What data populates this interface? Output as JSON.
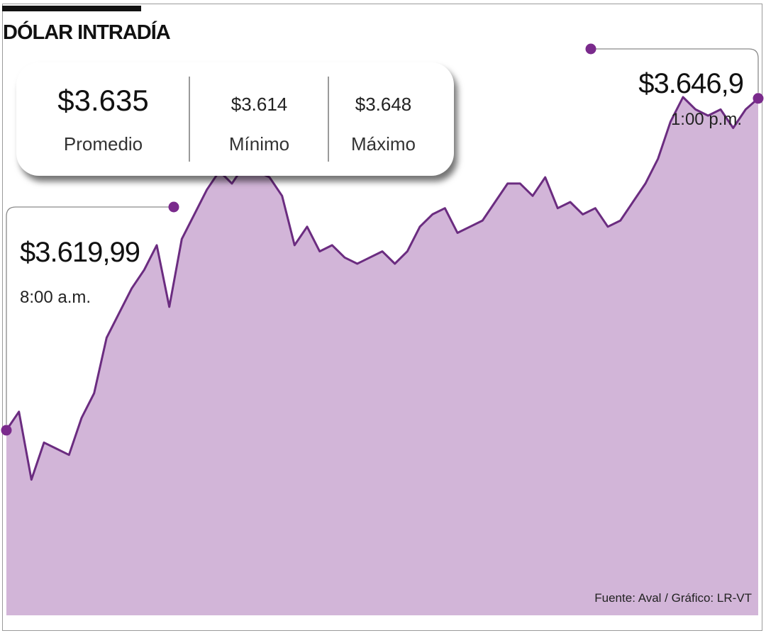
{
  "title": "DÓLAR INTRADÍA",
  "stats": {
    "average": {
      "value": "$3.635",
      "label": "Promedio"
    },
    "minimum": {
      "value": "$3.614",
      "label": "Mínimo"
    },
    "maximum": {
      "value": "$3.648",
      "label": "Máximo"
    }
  },
  "annotations": {
    "open": {
      "value": "$3.619,99",
      "time": "8:00 a.m."
    },
    "close": {
      "value": "$3.646,9",
      "time": "1:00 p.m."
    }
  },
  "source": "Fuente: Aval / Gráfico: LR-VT",
  "colors": {
    "line": "#6b2c80",
    "fill": "#d2b5d8",
    "marker": "#7a2a8c"
  },
  "chart_data": {
    "type": "area",
    "y_unit": "COP per USD",
    "xlim": [
      "8:00 a.m.",
      "1:00 p.m."
    ],
    "ylim": [
      3605,
      3652
    ],
    "x": [
      "8:00",
      "8:05",
      "8:10",
      "8:15",
      "8:20",
      "8:25",
      "8:30",
      "8:35",
      "8:40",
      "8:45",
      "8:50",
      "8:55",
      "9:00",
      "9:05",
      "9:10",
      "9:15",
      "9:20",
      "9:25",
      "9:30",
      "9:35",
      "9:40",
      "9:45",
      "9:50",
      "9:55",
      "10:00",
      "10:05",
      "10:10",
      "10:15",
      "10:20",
      "10:25",
      "10:30",
      "10:35",
      "10:40",
      "10:45",
      "10:50",
      "10:55",
      "11:00",
      "11:05",
      "11:10",
      "11:15",
      "11:20",
      "11:25",
      "11:30",
      "11:35",
      "11:40",
      "11:45",
      "11:50",
      "11:55",
      "12:00",
      "12:05",
      "12:10",
      "12:15",
      "12:20",
      "12:25",
      "12:30",
      "12:35",
      "12:40",
      "12:45",
      "12:50",
      "12:55",
      "13:00"
    ],
    "y": [
      3620.0,
      3621.5,
      3616.0,
      3619.0,
      3618.5,
      3618.0,
      3621.0,
      3623.0,
      3627.5,
      3629.5,
      3631.5,
      3633.0,
      3635.0,
      3630.0,
      3635.5,
      3637.5,
      3639.5,
      3641.0,
      3640.0,
      3641.5,
      3641.0,
      3640.5,
      3639.0,
      3635.0,
      3636.5,
      3634.5,
      3635.0,
      3634.0,
      3633.5,
      3634.0,
      3634.5,
      3633.5,
      3634.5,
      3636.5,
      3637.5,
      3638.0,
      3636.0,
      3636.5,
      3637.0,
      3638.5,
      3640.0,
      3640.0,
      3639.0,
      3640.5,
      3638.0,
      3638.5,
      3637.5,
      3638.0,
      3636.5,
      3637.0,
      3638.5,
      3640.0,
      3642.0,
      3645.0,
      3647.0,
      3646.0,
      3645.5,
      3646.0,
      3644.5,
      3646.0,
      3646.9
    ]
  }
}
